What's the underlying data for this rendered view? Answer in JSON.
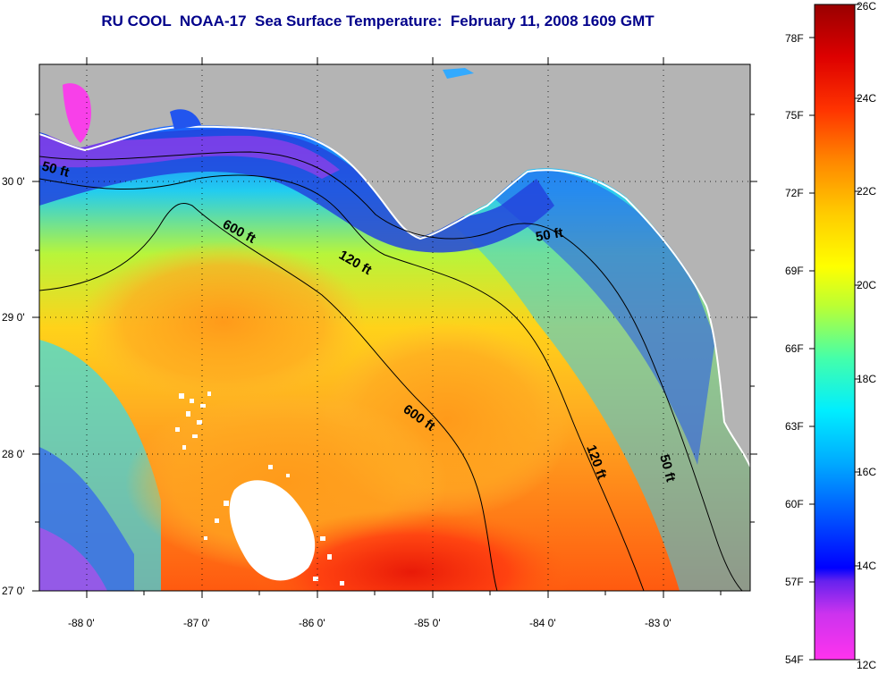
{
  "title": "RU COOL  NOAA-17  Sea Surface Temperature:  February 11, 2008 1609 GMT",
  "map": {
    "lat_labels": [
      "30 0'",
      "29 0'",
      "28 0'",
      "27 0'"
    ],
    "lon_labels": [
      "-88 0'",
      "-87 0'",
      "-86 0'",
      "-85 0'",
      "-84 0'",
      "-83 0'"
    ],
    "contour_labels": [
      "50 ft",
      "50 ft",
      "50 ft",
      "120 ft",
      "120 ft",
      "600 ft",
      "600 ft"
    ],
    "colors": {
      "land": "#b4b4b4",
      "cloud": "#ffffff",
      "contour": "#000000"
    }
  },
  "colorbar": {
    "f_labels": [
      "78F",
      "75F",
      "72F",
      "69F",
      "66F",
      "63F",
      "60F",
      "57F",
      "54F"
    ],
    "c_labels": [
      "26C",
      "24C",
      "22C",
      "20C",
      "18C",
      "16C",
      "14C",
      "12C"
    ],
    "range_c": [
      12,
      26
    ],
    "stops": [
      "#ff33ee",
      "#aa22ee",
      "#0000ff",
      "#0066ff",
      "#00ccff",
      "#00ffee",
      "#66ff99",
      "#ccff33",
      "#ffff00",
      "#ffcc00",
      "#ff9900",
      "#ff6600",
      "#ff2200",
      "#dd0000",
      "#990000"
    ]
  }
}
